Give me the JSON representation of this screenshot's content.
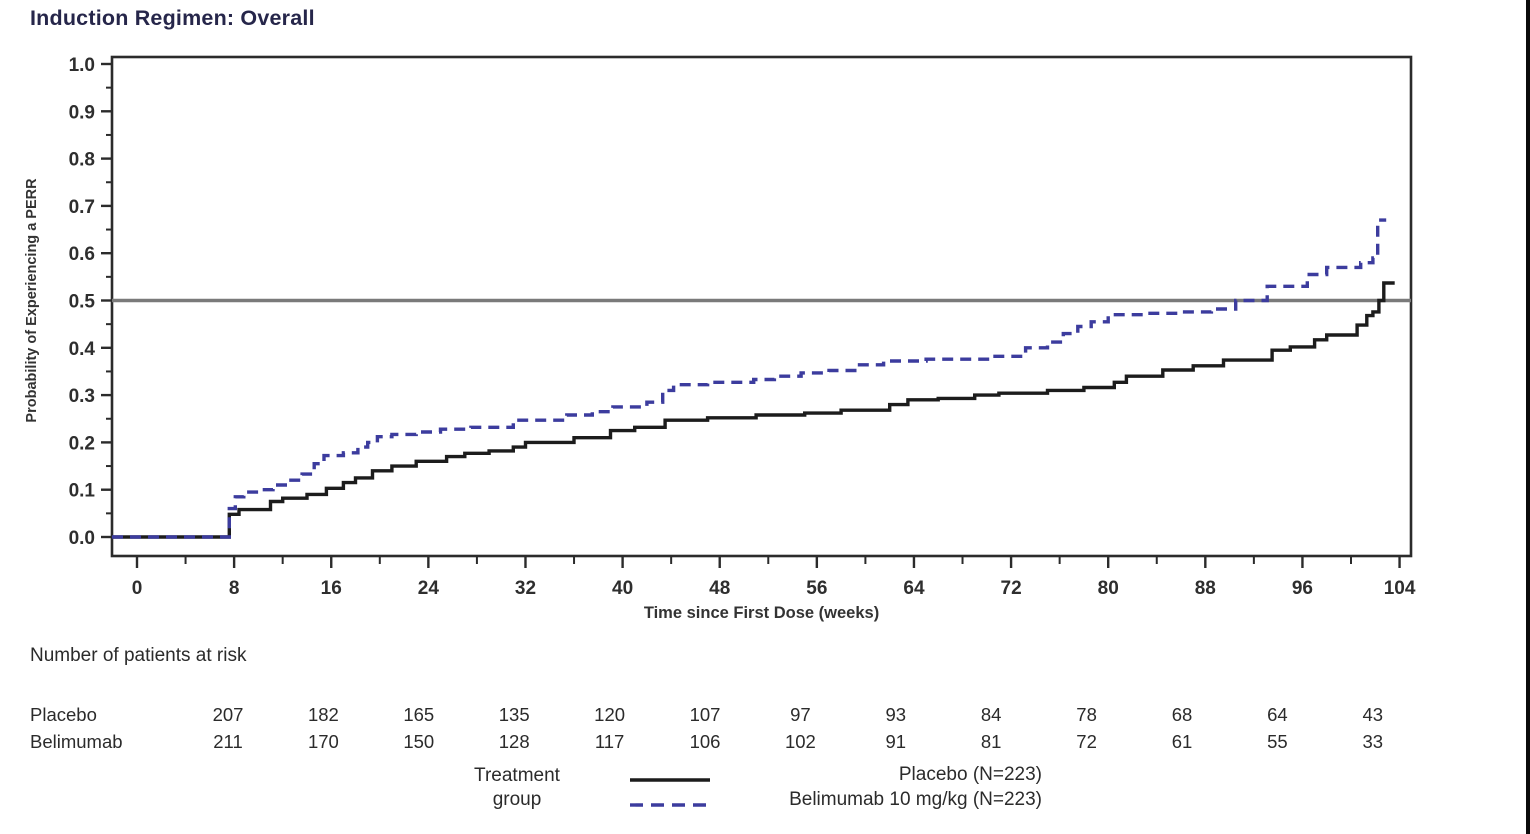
{
  "title": "Induction Regimen: Overall",
  "colors": {
    "axis": "#2b2b2b",
    "reference_line": "#7a7a7a",
    "placebo_line": "#1c1c1c",
    "belimumab_line": "#3c3c9e",
    "title_text": "#26264a",
    "body_text": "#2b2b2b"
  },
  "chart_data": {
    "type": "line",
    "subtype": "kaplan-meier-step",
    "title": "Induction Regimen: Overall",
    "xlabel": "Time since First Dose (weeks)",
    "ylabel": "Probability of Experiencing a PERR",
    "xlim": [
      0,
      105
    ],
    "ylim": [
      0.0,
      1.0
    ],
    "grid": false,
    "legend_position": "bottom",
    "reference_line_y": 0.5,
    "xticks": [
      0,
      8,
      16,
      24,
      32,
      40,
      48,
      56,
      64,
      72,
      80,
      88,
      96,
      104
    ],
    "x_minor_ticks": [
      4,
      12,
      20,
      28,
      36,
      44,
      52,
      60,
      68,
      76,
      84,
      92,
      100
    ],
    "yticks": [
      0.0,
      0.1,
      0.2,
      0.3,
      0.4,
      0.5,
      0.6,
      0.7,
      0.8,
      0.9,
      1.0
    ],
    "y_minor_ticks": [
      0.05,
      0.15,
      0.25,
      0.35,
      0.45,
      0.55,
      0.65,
      0.75,
      0.85,
      0.95
    ],
    "series": [
      {
        "name": "Placebo (N=223)",
        "short_name": "Placebo",
        "data_name": "placebo-curve",
        "color": "#1c1c1c",
        "line_style": "solid",
        "points": [
          [
            0,
            0
          ],
          [
            7.6,
            0.048
          ],
          [
            8.4,
            0.058
          ],
          [
            11,
            0.075
          ],
          [
            12,
            0.082
          ],
          [
            14,
            0.09
          ],
          [
            15.6,
            0.103
          ],
          [
            17,
            0.115
          ],
          [
            18,
            0.125
          ],
          [
            19.4,
            0.14
          ],
          [
            21,
            0.15
          ],
          [
            23,
            0.16
          ],
          [
            25.5,
            0.17
          ],
          [
            27,
            0.177
          ],
          [
            29,
            0.182
          ],
          [
            31,
            0.19
          ],
          [
            32,
            0.2
          ],
          [
            36,
            0.21
          ],
          [
            39,
            0.225
          ],
          [
            41,
            0.232
          ],
          [
            43.5,
            0.247
          ],
          [
            47,
            0.252
          ],
          [
            51,
            0.258
          ],
          [
            55,
            0.262
          ],
          [
            58,
            0.268
          ],
          [
            62,
            0.28
          ],
          [
            63.5,
            0.29
          ],
          [
            66,
            0.293
          ],
          [
            69,
            0.3
          ],
          [
            71,
            0.304
          ],
          [
            75,
            0.31
          ],
          [
            78,
            0.316
          ],
          [
            80.5,
            0.327
          ],
          [
            81.5,
            0.34
          ],
          [
            84.5,
            0.353
          ],
          [
            87,
            0.362
          ],
          [
            89.5,
            0.374
          ],
          [
            93.5,
            0.395
          ],
          [
            95,
            0.402
          ],
          [
            97,
            0.417
          ],
          [
            98,
            0.427
          ],
          [
            100.5,
            0.448
          ],
          [
            101.3,
            0.468
          ],
          [
            101.8,
            0.476
          ],
          [
            102.3,
            0.5
          ],
          [
            102.7,
            0.537
          ],
          [
            103.6,
            0.537
          ]
        ]
      },
      {
        "name": "Belimumab 10 mg/kg (N=223)",
        "short_name": "Belimumab",
        "data_name": "belimumab-curve",
        "color": "#3c3c9e",
        "line_style": "dashed",
        "points": [
          [
            0,
            0
          ],
          [
            7.6,
            0.06
          ],
          [
            8.1,
            0.085
          ],
          [
            8.8,
            0.095
          ],
          [
            10,
            0.1
          ],
          [
            11.2,
            0.11
          ],
          [
            12.4,
            0.12
          ],
          [
            13.6,
            0.133
          ],
          [
            14.6,
            0.155
          ],
          [
            15.4,
            0.172
          ],
          [
            17,
            0.178
          ],
          [
            18.2,
            0.19
          ],
          [
            19,
            0.2
          ],
          [
            19.8,
            0.212
          ],
          [
            21,
            0.217
          ],
          [
            23,
            0.222
          ],
          [
            25,
            0.228
          ],
          [
            27.5,
            0.232
          ],
          [
            31,
            0.247
          ],
          [
            35.4,
            0.258
          ],
          [
            37.5,
            0.265
          ],
          [
            39.2,
            0.275
          ],
          [
            42,
            0.285
          ],
          [
            43.3,
            0.31
          ],
          [
            44.2,
            0.322
          ],
          [
            47,
            0.327
          ],
          [
            50.8,
            0.333
          ],
          [
            52.5,
            0.34
          ],
          [
            54.7,
            0.347
          ],
          [
            57,
            0.352
          ],
          [
            59.3,
            0.364
          ],
          [
            61.5,
            0.372
          ],
          [
            65,
            0.376
          ],
          [
            70.3,
            0.382
          ],
          [
            73.2,
            0.4
          ],
          [
            75,
            0.412
          ],
          [
            76.3,
            0.43
          ],
          [
            77.5,
            0.445
          ],
          [
            78.6,
            0.455
          ],
          [
            80,
            0.47
          ],
          [
            83,
            0.473
          ],
          [
            86,
            0.476
          ],
          [
            88.5,
            0.482
          ],
          [
            90.5,
            0.5
          ],
          [
            93.1,
            0.53
          ],
          [
            96.4,
            0.555
          ],
          [
            98,
            0.57
          ],
          [
            100.8,
            0.58
          ],
          [
            101.8,
            0.59
          ],
          [
            102.2,
            0.67
          ],
          [
            102.9,
            0.67
          ]
        ]
      }
    ]
  },
  "risk_table": {
    "heading": "Number of patients at risk",
    "weeks": [
      8,
      16,
      24,
      32,
      40,
      48,
      56,
      64,
      72,
      80,
      88,
      96,
      104
    ],
    "rows": [
      {
        "label": "Placebo",
        "values": [
          207,
          182,
          165,
          135,
          120,
          107,
          97,
          93,
          84,
          78,
          68,
          64,
          43
        ]
      },
      {
        "label": "Belimumab",
        "values": [
          211,
          170,
          150,
          128,
          117,
          106,
          102,
          91,
          81,
          72,
          61,
          55,
          33
        ]
      }
    ]
  },
  "legend": {
    "group_label_line1": "Treatment",
    "group_label_line2": "group",
    "entries": [
      {
        "label": "Placebo (N=223)",
        "color": "#1c1c1c",
        "line_style": "solid"
      },
      {
        "label": "Belimumab 10 mg/kg (N=223)",
        "color": "#3c3c9e",
        "line_style": "dashed"
      }
    ]
  }
}
